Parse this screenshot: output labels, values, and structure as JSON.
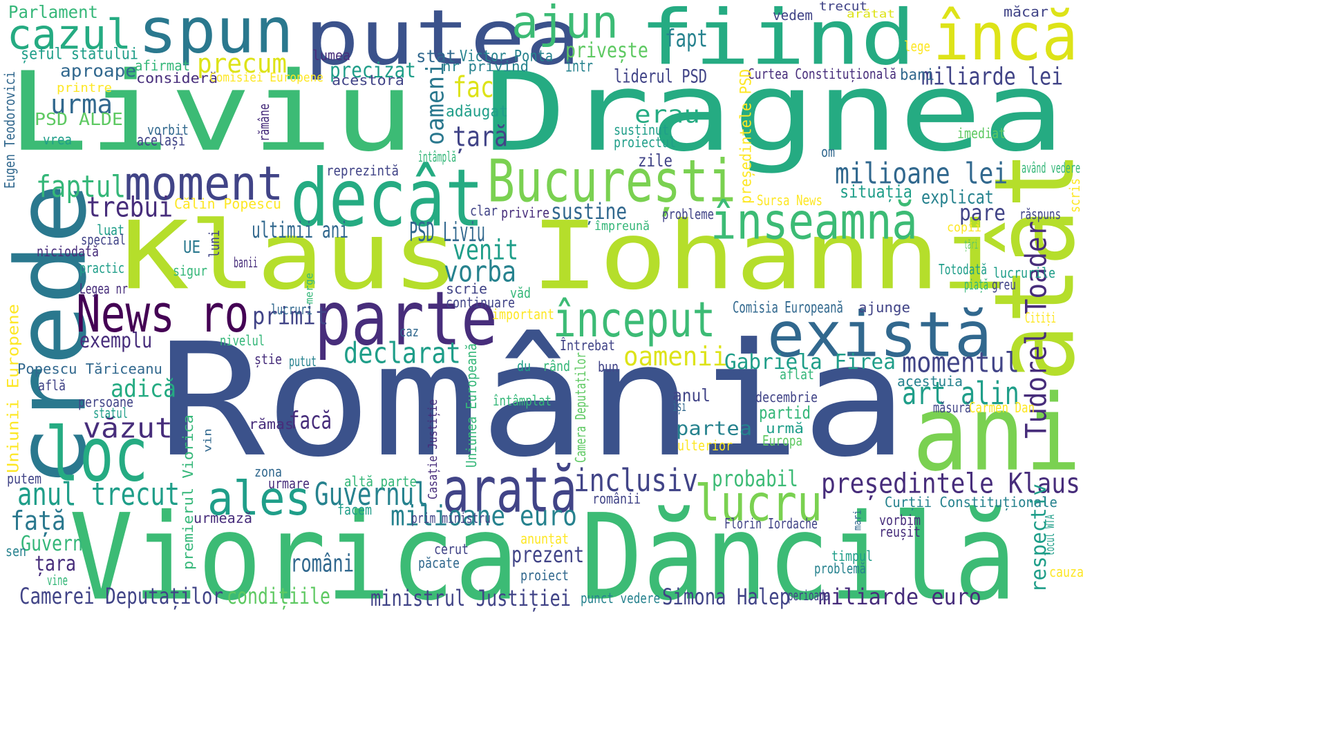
{
  "palette": {
    "navy": "#3b528b",
    "purple": "#472d7b",
    "deep_purple": "#440154",
    "teal": "#2a788e",
    "blue_teal": "#31688e",
    "green": "#3cbb75",
    "sea_green": "#25ab82",
    "lime": "#b5de2b",
    "light_green": "#7ad151",
    "yellow": "#dde318",
    "bright_yellow": "#fde725",
    "cyan": "#1f9e89",
    "mint": "#5ec962",
    "indigo": "#414487",
    "dark_teal": "#26828e",
    "sky": "#35b779"
  },
  "words": [
    {
      "text": "România",
      "color": "navy"
    },
    {
      "text": "Liviu",
      "color": "green"
    },
    {
      "text": "Dragnea",
      "color": "sea_green"
    },
    {
      "text": "Klaus",
      "color": "lime"
    },
    {
      "text": "Iohanni",
      "color": "lime"
    },
    {
      "text": "Viorica",
      "color": "green"
    },
    {
      "text": "Dăncilă",
      "color": "green"
    },
    {
      "text": "crede",
      "color": "teal"
    },
    {
      "text": "fiind",
      "color": "sea_green"
    },
    {
      "text": "putea",
      "color": "navy"
    },
    {
      "text": "atât",
      "color": "lime"
    },
    {
      "text": "ani",
      "color": "light_green"
    },
    {
      "text": "spun",
      "color": "teal"
    },
    {
      "text": "decât",
      "color": "sea_green"
    },
    {
      "text": "parte",
      "color": "purple"
    },
    {
      "text": "există",
      "color": "blue_teal"
    },
    {
      "text": "încă",
      "color": "yellow"
    },
    {
      "text": "arată",
      "color": "indigo"
    },
    {
      "text": "București",
      "color": "light_green"
    },
    {
      "text": "loc",
      "color": "sea_green"
    },
    {
      "text": "ales",
      "color": "cyan"
    },
    {
      "text": "ajun",
      "color": "green"
    },
    {
      "text": "cazul",
      "color": "sea_green"
    },
    {
      "text": "moment",
      "color": "indigo"
    },
    {
      "text": "înseamnă",
      "color": "green"
    },
    {
      "text": "început",
      "color": "green"
    },
    {
      "text": "News ro",
      "color": "deep_purple"
    },
    {
      "text": "lucru",
      "color": "light_green"
    },
    {
      "text": "anul trecut",
      "color": "cyan"
    },
    {
      "text": "Guvernul",
      "color": "dark_teal"
    },
    {
      "text": "președintele Klaus",
      "color": "purple"
    },
    {
      "text": "milioane euro",
      "color": "dark_teal"
    },
    {
      "text": "inclusiv",
      "color": "indigo"
    },
    {
      "text": "declarat",
      "color": "cyan"
    },
    {
      "text": "momentul",
      "color": "indigo"
    },
    {
      "text": "art alin",
      "color": "cyan"
    },
    {
      "text": "Tudorel Toader",
      "color": "purple"
    },
    {
      "text": "milioane lei",
      "color": "blue_teal"
    },
    {
      "text": "vorba",
      "color": "dark_teal"
    },
    {
      "text": "venit",
      "color": "cyan"
    },
    {
      "text": "faptul",
      "color": "sky"
    },
    {
      "text": "trebui",
      "color": "purple"
    },
    {
      "text": "precum",
      "color": "yellow"
    },
    {
      "text": "urma",
      "color": "blue_teal"
    },
    {
      "text": "oameni",
      "color": "teal"
    },
    {
      "text": "oamenii",
      "color": "yellow"
    },
    {
      "text": "fac",
      "color": "yellow"
    },
    {
      "text": "țară",
      "color": "indigo"
    },
    {
      "text": "fapt",
      "color": "dark_teal"
    },
    {
      "text": "erau",
      "color": "sea_green"
    },
    {
      "text": "ultimii ani",
      "color": "blue_teal"
    },
    {
      "text": "PSD Liviu",
      "color": "blue_teal"
    },
    {
      "text": "Gabriela Firea",
      "color": "cyan"
    },
    {
      "text": "văzut",
      "color": "purple"
    },
    {
      "text": "adică",
      "color": "sea_green"
    },
    {
      "text": "față",
      "color": "teal"
    },
    {
      "text": "exemplu",
      "color": "purple"
    },
    {
      "text": "primit",
      "color": "indigo"
    },
    {
      "text": "facă",
      "color": "purple"
    },
    {
      "text": "probabil",
      "color": "green"
    },
    {
      "text": "prezent",
      "color": "indigo"
    },
    {
      "text": "români",
      "color": "blue_teal"
    },
    {
      "text": "Camerei Deputaților",
      "color": "indigo"
    },
    {
      "text": "condițiile",
      "color": "mint"
    },
    {
      "text": "ministrul Justiției",
      "color": "indigo"
    },
    {
      "text": "Simona Halep",
      "color": "indigo"
    },
    {
      "text": "miliarde euro",
      "color": "purple"
    },
    {
      "text": "respectiv",
      "color": "cyan"
    },
    {
      "text": "Guvern",
      "color": "sky"
    },
    {
      "text": "țara",
      "color": "purple"
    },
    {
      "text": "miliarde lei",
      "color": "indigo"
    },
    {
      "text": "liderul PSD",
      "color": "indigo"
    },
    {
      "text": "precizat",
      "color": "cyan"
    },
    {
      "text": "privește",
      "color": "mint"
    },
    {
      "text": "susține",
      "color": "blue_teal"
    },
    {
      "text": "pare",
      "color": "indigo"
    },
    {
      "text": "explicat",
      "color": "dark_teal"
    },
    {
      "text": "situația",
      "color": "cyan"
    },
    {
      "text": "partid",
      "color": "sky"
    },
    {
      "text": "partea",
      "color": "dark_teal"
    },
    {
      "text": "anul",
      "color": "indigo"
    },
    {
      "text": "Parlament",
      "color": "sky"
    },
    {
      "text": "șeful statului",
      "color": "cyan"
    },
    {
      "text": "aproape",
      "color": "blue_teal"
    },
    {
      "text": "afirmat",
      "color": "sky"
    },
    {
      "text": "consideră",
      "color": "purple"
    },
    {
      "text": "Comisiei Europene",
      "color": "bright_yellow"
    },
    {
      "text": "lumea",
      "color": "purple"
    },
    {
      "text": "stat",
      "color": "blue_teal"
    },
    {
      "text": "Victor Ponta",
      "color": "dark_teal"
    },
    {
      "text": "nr privind",
      "color": "dark_teal"
    },
    {
      "text": "acestora",
      "color": "indigo"
    },
    {
      "text": "într",
      "color": "dark_teal"
    },
    {
      "text": "Curtea Constituțională",
      "color": "purple"
    },
    {
      "text": "bani",
      "color": "blue_teal"
    },
    {
      "text": "vedem",
      "color": "indigo"
    },
    {
      "text": "trecut",
      "color": "indigo"
    },
    {
      "text": "arătat",
      "color": "yellow"
    },
    {
      "text": "măcar",
      "color": "indigo"
    },
    {
      "text": "lege",
      "color": "bright_yellow"
    },
    {
      "text": "printre",
      "color": "bright_yellow"
    },
    {
      "text": "PSD ALDE",
      "color": "mint"
    },
    {
      "text": "vorbit",
      "color": "blue_teal"
    },
    {
      "text": "același",
      "color": "indigo"
    },
    {
      "text": "vrea",
      "color": "cyan"
    },
    {
      "text": "rămâne",
      "color": "purple"
    },
    {
      "text": "Eugen Teodorovici",
      "color": "blue_teal"
    },
    {
      "text": "adăugat",
      "color": "cyan"
    },
    {
      "text": "susținut",
      "color": "cyan"
    },
    {
      "text": "proiectul",
      "color": "cyan"
    },
    {
      "text": "imediat",
      "color": "mint"
    },
    {
      "text": "om",
      "color": "blue_teal"
    },
    {
      "text": "zile",
      "color": "indigo"
    },
    {
      "text": "reprezintă",
      "color": "indigo"
    },
    {
      "text": "întâmplă",
      "color": "sky"
    },
    {
      "text": "președintele PSD",
      "color": "bright_yellow"
    },
    {
      "text": "având vedere",
      "color": "sky"
    },
    {
      "text": "scris",
      "color": "bright_yellow"
    },
    {
      "text": "Călin Popescu",
      "color": "bright_yellow"
    },
    {
      "text": "clar",
      "color": "indigo"
    },
    {
      "text": "privire",
      "color": "purple"
    },
    {
      "text": "probleme",
      "color": "indigo"
    },
    {
      "text": "Sursa News",
      "color": "bright_yellow"
    },
    {
      "text": "răspuns",
      "color": "indigo"
    },
    {
      "text": "luat",
      "color": "cyan"
    },
    {
      "text": "special",
      "color": "indigo"
    },
    {
      "text": "niciodată",
      "color": "purple"
    },
    {
      "text": "UE",
      "color": "teal"
    },
    {
      "text": "practic",
      "color": "cyan"
    },
    {
      "text": "banii",
      "color": "purple"
    },
    {
      "text": "luni",
      "color": "indigo"
    },
    {
      "text": "sigur",
      "color": "sky"
    },
    {
      "text": "împreună",
      "color": "sky"
    },
    {
      "text": "copii",
      "color": "bright_yellow"
    },
    {
      "text": "țări",
      "color": "mint"
    },
    {
      "text": "Legea nr",
      "color": "purple"
    },
    {
      "text": "merge",
      "color": "sky"
    },
    {
      "text": "scrie",
      "color": "indigo"
    },
    {
      "text": "văd",
      "color": "sky"
    },
    {
      "text": "continuare",
      "color": "indigo"
    },
    {
      "text": "Totodată",
      "color": "cyan"
    },
    {
      "text": "lucrurile",
      "color": "cyan"
    },
    {
      "text": "piață",
      "color": "sky"
    },
    {
      "text": "greu",
      "color": "indigo"
    },
    {
      "text": "Comisia Europeană",
      "color": "blue_teal"
    },
    {
      "text": "ajunge",
      "color": "indigo"
    },
    {
      "text": "Citiți",
      "color": "bright_yellow"
    },
    {
      "text": "Uniunii Europene",
      "color": "bright_yellow"
    },
    {
      "text": "lucruri",
      "color": "blue_teal"
    },
    {
      "text": "important",
      "color": "bright_yellow"
    },
    {
      "text": "nivelul",
      "color": "sky"
    },
    {
      "text": "caz",
      "color": "blue_teal"
    },
    {
      "text": "Întrebat",
      "color": "indigo"
    },
    {
      "text": "știe",
      "color": "purple"
    },
    {
      "text": "putut",
      "color": "dark_teal"
    },
    {
      "text": "Popescu Tăriceanu",
      "color": "blue_teal"
    },
    {
      "text": "află",
      "color": "indigo"
    },
    {
      "text": "persoane",
      "color": "indigo"
    },
    {
      "text": "statul",
      "color": "cyan"
    },
    {
      "text": "Uniunea Europeană",
      "color": "sky"
    },
    {
      "text": "Casație Justiție",
      "color": "purple"
    },
    {
      "text": "du",
      "color": "cyan"
    },
    {
      "text": "rând",
      "color": "sky"
    },
    {
      "text": "Camera Deputaților",
      "color": "mint"
    },
    {
      "text": "bun",
      "color": "indigo"
    },
    {
      "text": "aflat",
      "color": "sky"
    },
    {
      "text": "acestuia",
      "color": "dark_teal"
    },
    {
      "text": "decembrie",
      "color": "indigo"
    },
    {
      "text": "își",
      "color": "blue_teal"
    },
    {
      "text": "întâmplat",
      "color": "sky"
    },
    {
      "text": "măsură",
      "color": "indigo"
    },
    {
      "text": "Carmen Dan",
      "color": "bright_yellow"
    },
    {
      "text": "rămas",
      "color": "purple"
    },
    {
      "text": "urmă",
      "color": "cyan"
    },
    {
      "text": "Europa",
      "color": "mint"
    },
    {
      "text": "ulterior",
      "color": "bright_yellow"
    },
    {
      "text": "premierul Viorica",
      "color": "sky"
    },
    {
      "text": "vin",
      "color": "blue_teal"
    },
    {
      "text": "zona",
      "color": "blue_teal"
    },
    {
      "text": "urmare",
      "color": "purple"
    },
    {
      "text": "putem",
      "color": "indigo"
    },
    {
      "text": "altă parte",
      "color": "sky"
    },
    {
      "text": "prim ministru",
      "color": "indigo"
    },
    {
      "text": "facem",
      "color": "cyan"
    },
    {
      "text": "urmează",
      "color": "purple"
    },
    {
      "text": "românii",
      "color": "indigo"
    },
    {
      "text": "Curții Constituționale",
      "color": "dark_teal"
    },
    {
      "text": "Florin Iordache",
      "color": "indigo"
    },
    {
      "text": "vorbim",
      "color": "purple"
    },
    {
      "text": "mari",
      "color": "blue_teal"
    },
    {
      "text": "reușit",
      "color": "purple"
    },
    {
      "text": "locul WTA",
      "color": "cyan"
    },
    {
      "text": "anunțat",
      "color": "bright_yellow"
    },
    {
      "text": "cerut",
      "color": "indigo"
    },
    {
      "text": "păcate",
      "color": "blue_teal"
    },
    {
      "text": "timpul",
      "color": "cyan"
    },
    {
      "text": "problemă",
      "color": "dark_teal"
    },
    {
      "text": "sen",
      "color": "dark_teal"
    },
    {
      "text": "vine",
      "color": "sky"
    },
    {
      "text": "proiect",
      "color": "blue_teal"
    },
    {
      "text": "punct vedere",
      "color": "dark_teal"
    },
    {
      "text": "perioada",
      "color": "indigo"
    },
    {
      "text": "cauza",
      "color": "bright_yellow"
    }
  ]
}
